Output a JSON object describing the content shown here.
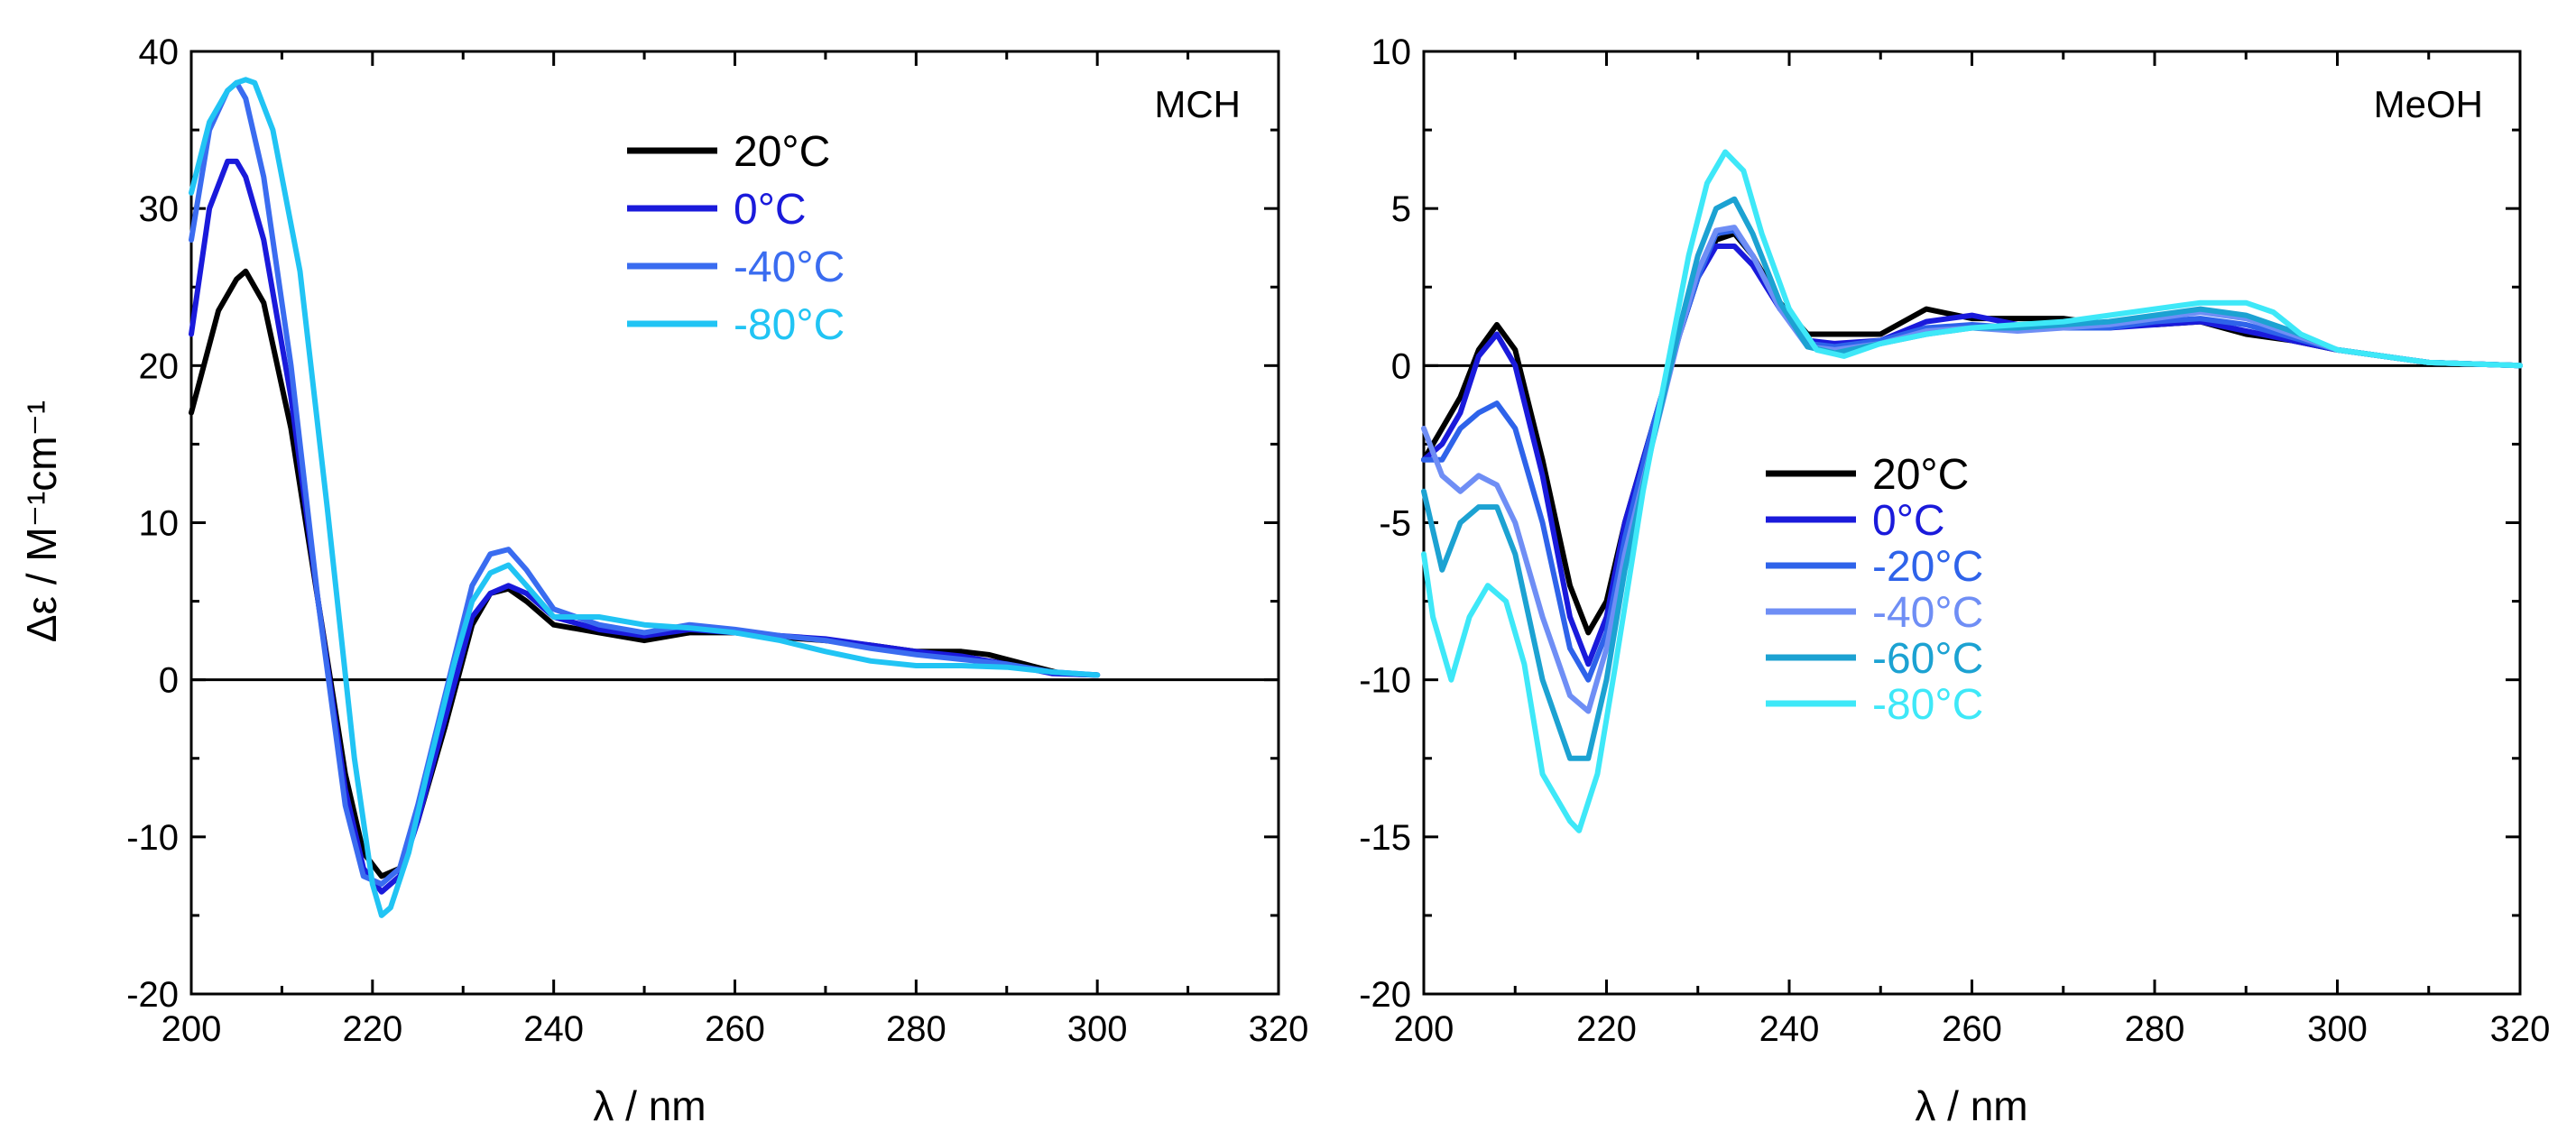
{
  "chart_data": [
    {
      "type": "line",
      "panel_label": "MCH",
      "xlabel": "λ / nm",
      "ylabel": "Δε / M⁻¹cm⁻¹",
      "xlim": [
        200,
        320
      ],
      "ylim": [
        -20,
        40
      ],
      "xticks": [
        200,
        220,
        240,
        260,
        280,
        300,
        320
      ],
      "yticks": [
        -20,
        -10,
        0,
        10,
        20,
        30,
        40
      ],
      "xtick_labels": [
        "200",
        "220",
        "240",
        "260",
        "280",
        "300",
        "320"
      ],
      "ytick_labels": [
        "-20",
        "-10",
        "0",
        "10",
        "20",
        "30",
        "40"
      ],
      "zero_line": true,
      "legend_position": "top-center",
      "series": [
        {
          "name": "20°C",
          "color": "#000000",
          "x": [
            200,
            203,
            205,
            206,
            208,
            211,
            214,
            217,
            219,
            221,
            223,
            225,
            228,
            231,
            233,
            235,
            237,
            240,
            245,
            250,
            255,
            260,
            265,
            270,
            275,
            280,
            285,
            288,
            292,
            296,
            300
          ],
          "y": [
            17,
            23.5,
            25.5,
            26,
            24,
            16,
            5,
            -6,
            -11,
            -12.5,
            -12,
            -9,
            -3,
            3.5,
            5.5,
            5.8,
            5,
            3.5,
            3,
            2.5,
            3,
            3,
            2.7,
            2.5,
            2.2,
            1.8,
            1.8,
            1.6,
            1,
            0.4,
            0.3
          ]
        },
        {
          "name": "0°C",
          "color": "#1a1adb",
          "x": [
            200,
            202,
            204,
            205,
            206,
            208,
            211,
            214,
            217,
            219,
            221,
            223,
            225,
            228,
            231,
            233,
            235,
            237,
            240,
            245,
            250,
            255,
            260,
            265,
            270,
            275,
            280,
            285,
            290,
            295,
            300
          ],
          "y": [
            22,
            30,
            33,
            33,
            32,
            28,
            18,
            5,
            -7,
            -12,
            -13.5,
            -12.5,
            -9,
            -2.5,
            4,
            5.5,
            6,
            5.5,
            4,
            3.2,
            2.8,
            3.2,
            3,
            2.8,
            2.6,
            2.2,
            1.8,
            1.5,
            1,
            0.4,
            0.3
          ]
        },
        {
          "name": "-40°C",
          "color": "#3a6cf0",
          "x": [
            200,
            202,
            204,
            205,
            206,
            208,
            211,
            214,
            217,
            219,
            221,
            223,
            225,
            228,
            231,
            233,
            235,
            237,
            240,
            245,
            250,
            255,
            260,
            265,
            270,
            275,
            280,
            285,
            290,
            295,
            300
          ],
          "y": [
            28,
            35,
            37.5,
            38,
            37,
            32,
            20,
            5,
            -8,
            -12.5,
            -13,
            -12,
            -8,
            -1,
            6,
            8,
            8.3,
            7,
            4.5,
            3.5,
            3,
            3.5,
            3.2,
            2.8,
            2.5,
            2,
            1.6,
            1.3,
            1,
            0.5,
            0.3
          ]
        },
        {
          "name": "-80°C",
          "color": "#21c4f4",
          "x": [
            200,
            202,
            204,
            205,
            206,
            207,
            209,
            212,
            215,
            218,
            220,
            221,
            222,
            224,
            226,
            229,
            231,
            233,
            235,
            237,
            240,
            245,
            250,
            255,
            260,
            265,
            270,
            275,
            280,
            285,
            290,
            295,
            300
          ],
          "y": [
            31,
            35.5,
            37.5,
            38,
            38.2,
            38,
            35,
            26,
            11,
            -5,
            -13,
            -15,
            -14.5,
            -11,
            -6,
            1,
            5,
            6.8,
            7.3,
            6,
            4,
            4,
            3.5,
            3.3,
            3,
            2.5,
            1.8,
            1.2,
            0.9,
            0.9,
            0.8,
            0.5,
            0.3
          ]
        }
      ]
    },
    {
      "type": "line",
      "panel_label": "MeOH",
      "xlabel": "λ / nm",
      "ylabel": "",
      "xlim": [
        200,
        320
      ],
      "ylim": [
        -20,
        10
      ],
      "xticks": [
        200,
        220,
        240,
        260,
        280,
        300,
        320
      ],
      "yticks": [
        -20,
        -15,
        -10,
        -5,
        0,
        5,
        10
      ],
      "xtick_labels": [
        "200",
        "220",
        "240",
        "260",
        "280",
        "300",
        "320"
      ],
      "ytick_labels": [
        "-20",
        "-15",
        "-10",
        "-5",
        "0",
        "5",
        "10"
      ],
      "zero_line": true,
      "legend_position": "center",
      "series": [
        {
          "name": "20°C",
          "color": "#000000",
          "x": [
            200,
            202,
            204,
            206,
            208,
            210,
            213,
            216,
            218,
            220,
            222,
            225,
            228,
            230,
            232,
            234,
            236,
            239,
            242,
            245,
            250,
            255,
            260,
            265,
            270,
            275,
            280,
            285,
            290,
            295,
            300,
            305,
            310,
            320
          ],
          "y": [
            -3,
            -2,
            -1,
            0.5,
            1.3,
            0.5,
            -3,
            -7,
            -8.5,
            -7.5,
            -5,
            -2,
            1,
            2.8,
            4,
            4.2,
            3.5,
            2,
            1,
            1,
            1,
            1.8,
            1.5,
            1.5,
            1.5,
            1.3,
            1.3,
            1.4,
            1,
            0.8,
            0.5,
            0.3,
            0.1,
            0
          ]
        },
        {
          "name": "0°C",
          "color": "#1a1adb",
          "x": [
            200,
            202,
            204,
            206,
            208,
            210,
            213,
            216,
            218,
            220,
            222,
            225,
            228,
            230,
            232,
            234,
            236,
            239,
            242,
            245,
            250,
            255,
            260,
            265,
            270,
            275,
            280,
            285,
            290,
            295,
            300,
            305,
            310,
            320
          ],
          "y": [
            -3,
            -2.5,
            -1.5,
            0.3,
            1,
            0,
            -3.5,
            -8,
            -9.5,
            -8,
            -5,
            -2,
            1,
            2.8,
            3.8,
            3.8,
            3.2,
            1.8,
            0.8,
            0.7,
            0.8,
            1.4,
            1.6,
            1.3,
            1.3,
            1.2,
            1.3,
            1.4,
            1.1,
            0.8,
            0.5,
            0.3,
            0.1,
            0
          ]
        },
        {
          "name": "-20°C",
          "color": "#2e63ea",
          "x": [
            200,
            202,
            204,
            206,
            208,
            210,
            213,
            216,
            218,
            220,
            222,
            225,
            228,
            230,
            232,
            234,
            236,
            239,
            242,
            245,
            250,
            255,
            260,
            265,
            270,
            275,
            280,
            285,
            290,
            295,
            300,
            305,
            310,
            320
          ],
          "y": [
            -3,
            -3,
            -2,
            -1.5,
            -1.2,
            -2,
            -5,
            -9,
            -10,
            -8.5,
            -5.5,
            -2,
            1,
            2.8,
            4.2,
            4.3,
            3.5,
            1.8,
            0.7,
            0.6,
            0.8,
            1.2,
            1.3,
            1.2,
            1.2,
            1.2,
            1.4,
            1.5,
            1.3,
            0.9,
            0.5,
            0.3,
            0.1,
            0
          ]
        },
        {
          "name": "-40°C",
          "color": "#6f8ef5",
          "x": [
            200,
            202,
            204,
            206,
            208,
            210,
            213,
            216,
            218,
            220,
            222,
            225,
            228,
            230,
            232,
            234,
            236,
            239,
            242,
            245,
            250,
            255,
            260,
            265,
            270,
            275,
            280,
            285,
            290,
            295,
            300,
            305,
            310,
            320
          ],
          "y": [
            -2,
            -3.5,
            -4,
            -3.5,
            -3.8,
            -5,
            -8,
            -10.5,
            -11,
            -9,
            -6,
            -2.5,
            1,
            3,
            4.3,
            4.4,
            3.5,
            1.8,
            0.6,
            0.5,
            0.7,
            1.1,
            1.2,
            1.1,
            1.2,
            1.3,
            1.5,
            1.7,
            1.5,
            1,
            0.5,
            0.3,
            0.1,
            0
          ]
        },
        {
          "name": "-60°C",
          "color": "#1ca2d2",
          "x": [
            200,
            202,
            204,
            206,
            208,
            210,
            213,
            216,
            218,
            220,
            222,
            225,
            228,
            230,
            232,
            234,
            236,
            239,
            242,
            245,
            250,
            255,
            260,
            265,
            270,
            275,
            280,
            285,
            290,
            295,
            300,
            305,
            310,
            320
          ],
          "y": [
            -4,
            -6.5,
            -5,
            -4.5,
            -4.5,
            -6,
            -10,
            -12.5,
            -12.5,
            -10,
            -6.5,
            -2.5,
            1.2,
            3.5,
            5,
            5.3,
            4.2,
            2,
            0.6,
            0.4,
            0.7,
            1,
            1.2,
            1.2,
            1.3,
            1.4,
            1.6,
            1.8,
            1.6,
            1.1,
            0.5,
            0.3,
            0.1,
            0
          ]
        },
        {
          "name": "-80°C",
          "color": "#3ee8f8",
          "x": [
            200,
            201,
            203,
            205,
            207,
            209,
            211,
            213,
            216,
            217,
            219,
            221,
            224,
            227,
            229,
            231,
            233,
            235,
            237,
            240,
            243,
            246,
            250,
            255,
            260,
            265,
            270,
            275,
            280,
            285,
            290,
            293,
            296,
            300,
            305,
            310,
            320
          ],
          "y": [
            -6,
            -8,
            -10,
            -8,
            -7,
            -7.5,
            -9.5,
            -13,
            -14.5,
            -14.8,
            -13,
            -9.5,
            -4,
            0.5,
            3.5,
            5.8,
            6.8,
            6.2,
            4.2,
            1.8,
            0.5,
            0.3,
            0.7,
            1,
            1.2,
            1.3,
            1.4,
            1.6,
            1.8,
            2,
            2,
            1.7,
            1,
            0.5,
            0.3,
            0.1,
            0
          ]
        }
      ]
    }
  ]
}
